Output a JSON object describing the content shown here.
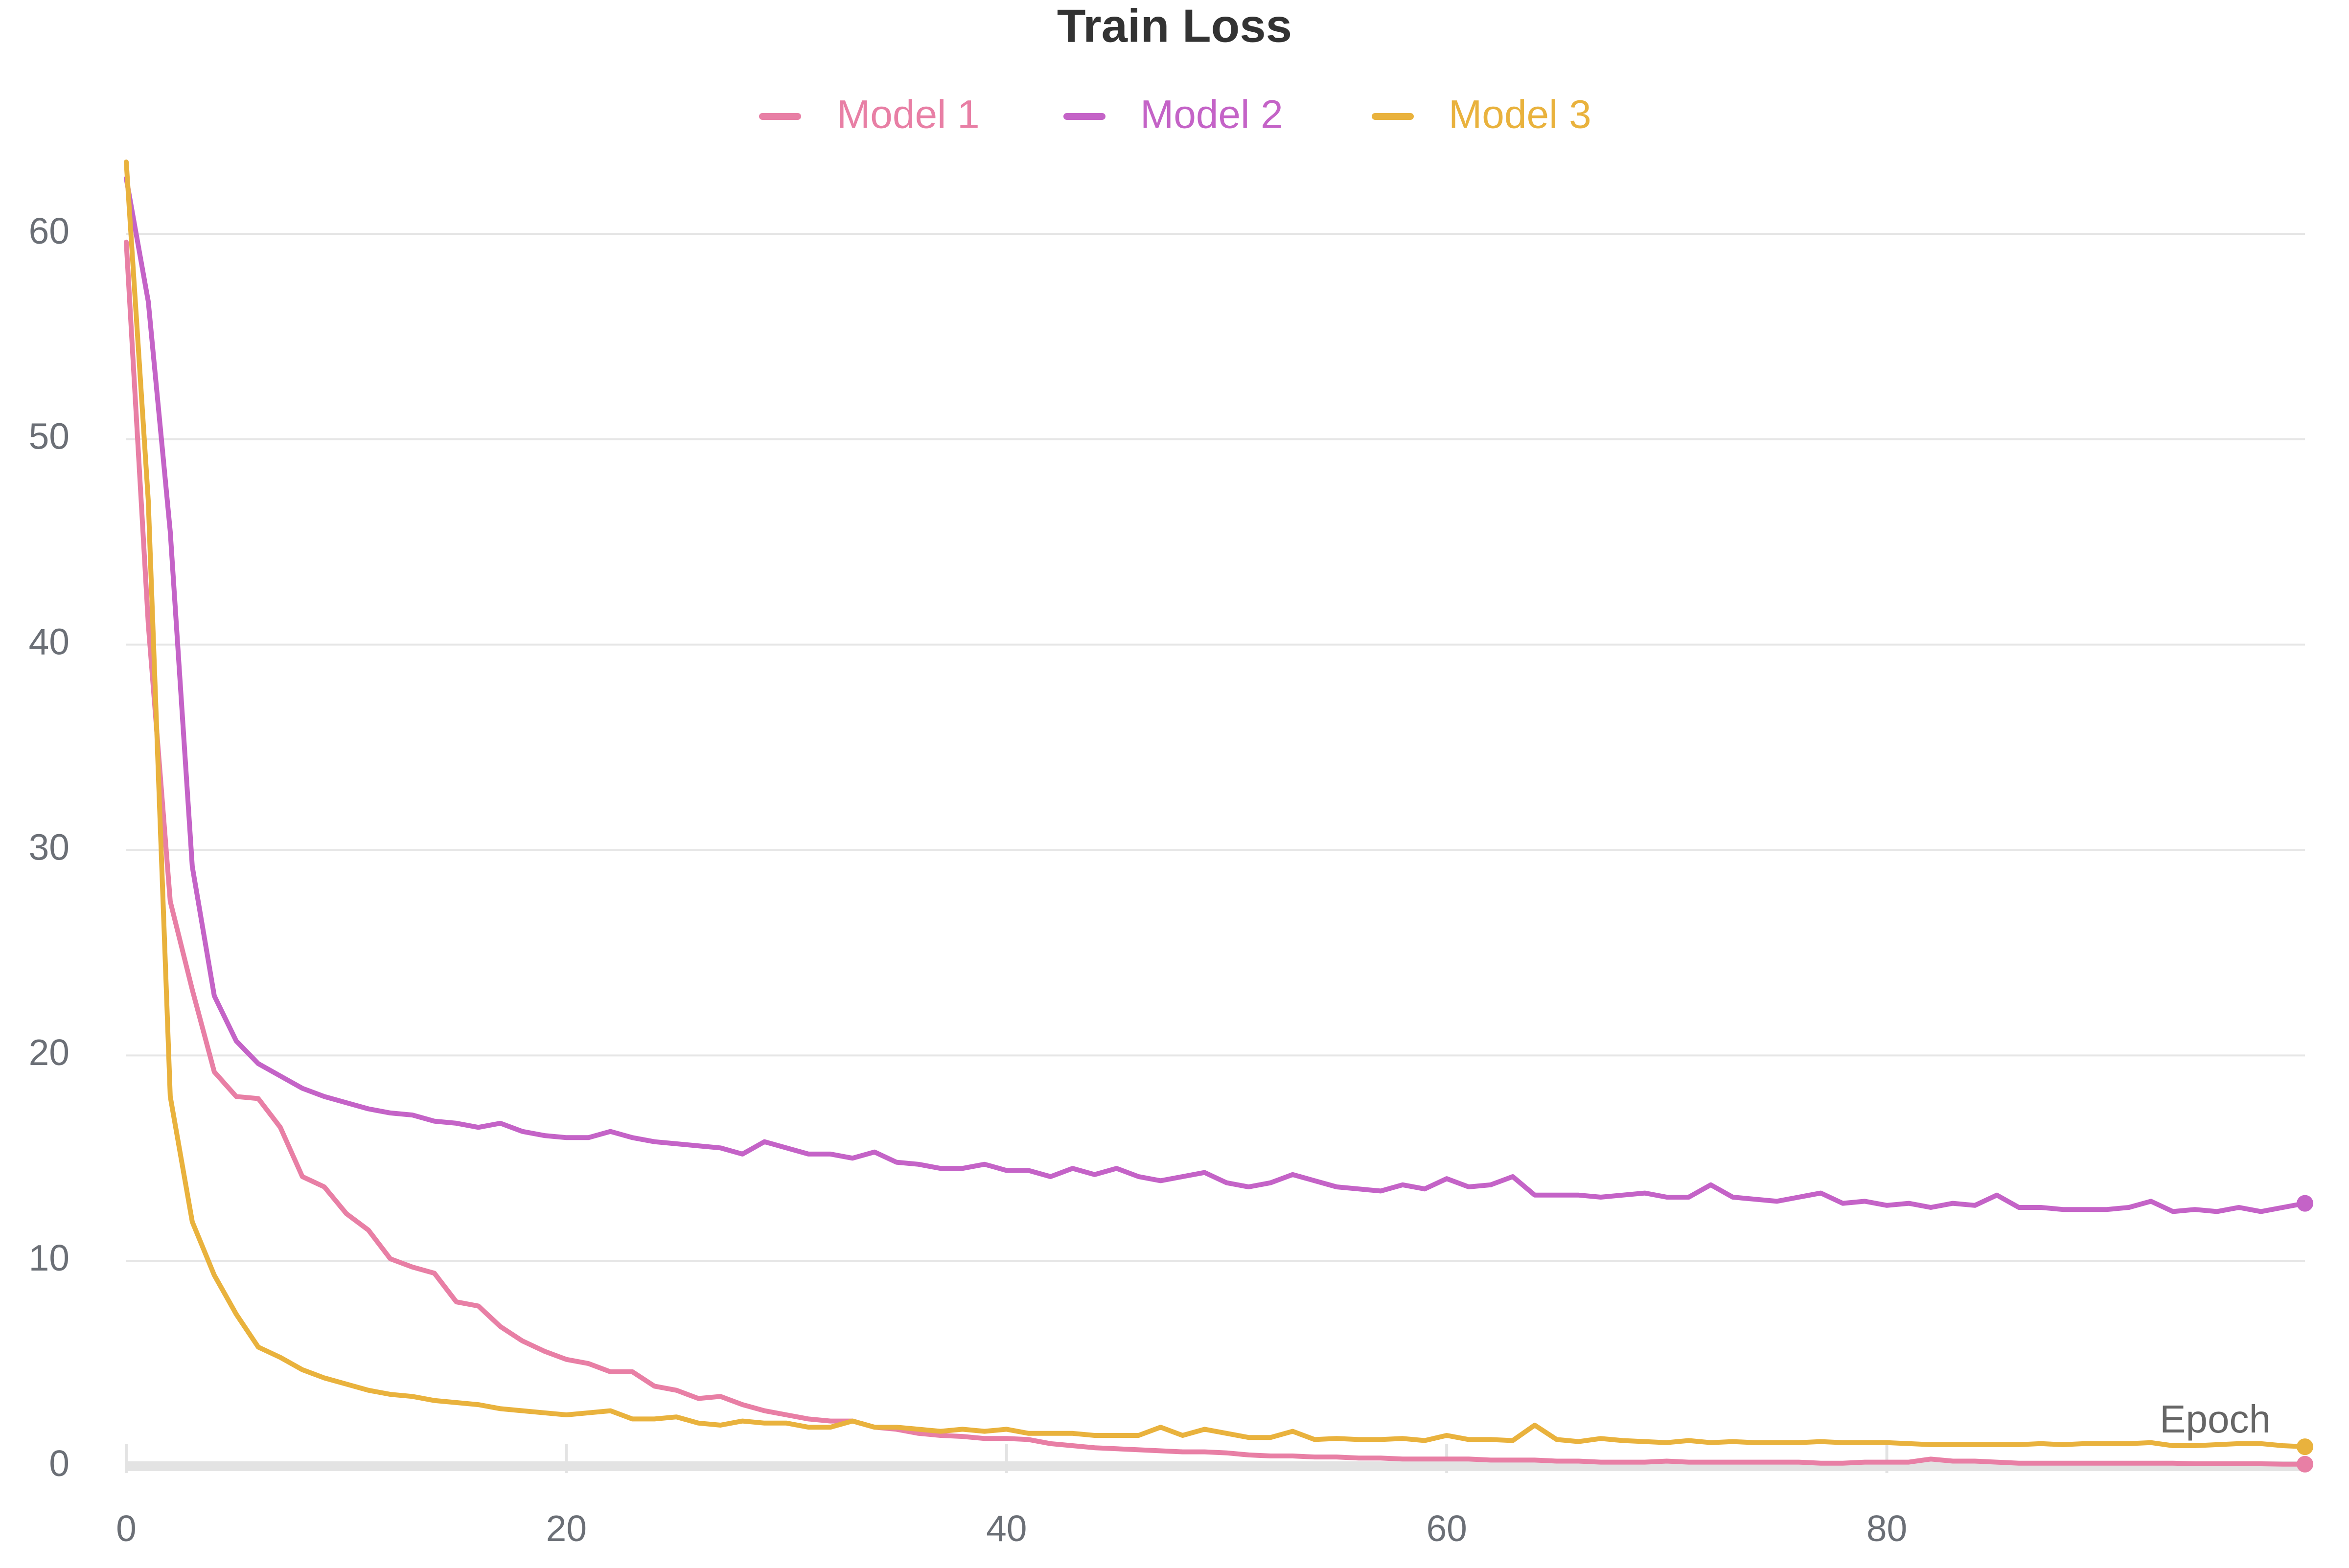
{
  "chart_data": {
    "type": "line",
    "title": "Train Loss",
    "xlabel": "Epoch",
    "ylabel": "",
    "xlim": [
      0,
      99
    ],
    "ylim": [
      0,
      60
    ],
    "x_ticks": [
      0,
      20,
      40,
      60,
      80
    ],
    "y_ticks": [
      0,
      10,
      20,
      30,
      40,
      50,
      60
    ],
    "grid": true,
    "legend_position": "top-center",
    "series": [
      {
        "name": "Model 1",
        "color": "#e87fa5",
        "values": [
          59.6,
          41.0,
          27.5,
          23.2,
          19.2,
          18.0,
          17.9,
          16.5,
          14.1,
          13.6,
          12.3,
          11.5,
          10.1,
          9.7,
          9.4,
          8.0,
          7.8,
          6.8,
          6.1,
          5.6,
          5.2,
          5.0,
          4.6,
          4.6,
          3.9,
          3.7,
          3.3,
          3.4,
          3.0,
          2.7,
          2.5,
          2.3,
          2.2,
          2.2,
          1.9,
          1.8,
          1.6,
          1.5,
          1.45,
          1.35,
          1.35,
          1.3,
          1.1,
          1.0,
          0.9,
          0.85,
          0.8,
          0.75,
          0.7,
          0.7,
          0.65,
          0.55,
          0.5,
          0.5,
          0.45,
          0.45,
          0.4,
          0.4,
          0.35,
          0.35,
          0.35,
          0.35,
          0.3,
          0.3,
          0.3,
          0.25,
          0.25,
          0.2,
          0.2,
          0.2,
          0.25,
          0.2,
          0.2,
          0.2,
          0.2,
          0.2,
          0.2,
          0.15,
          0.15,
          0.2,
          0.2,
          0.2,
          0.35,
          0.25,
          0.25,
          0.2,
          0.15,
          0.15,
          0.15,
          0.15,
          0.15,
          0.15,
          0.15,
          0.15,
          0.12,
          0.12,
          0.12,
          0.12,
          0.1,
          0.1
        ]
      },
      {
        "name": "Model 2",
        "color": "#c463c7",
        "values": [
          62.7,
          56.7,
          45.5,
          29.2,
          22.9,
          20.7,
          19.6,
          19.0,
          18.4,
          18.0,
          17.7,
          17.4,
          17.2,
          17.1,
          16.8,
          16.7,
          16.5,
          16.7,
          16.3,
          16.1,
          16.0,
          16.0,
          16.3,
          16.0,
          15.8,
          15.7,
          15.6,
          15.5,
          15.2,
          15.8,
          15.5,
          15.2,
          15.2,
          15.0,
          15.3,
          14.8,
          14.7,
          14.5,
          14.5,
          14.7,
          14.4,
          14.4,
          14.1,
          14.5,
          14.2,
          14.5,
          14.1,
          13.9,
          14.1,
          14.3,
          13.8,
          13.6,
          13.8,
          14.2,
          13.9,
          13.6,
          13.5,
          13.4,
          13.7,
          13.5,
          14.0,
          13.6,
          13.7,
          14.1,
          13.2,
          13.2,
          13.2,
          13.1,
          13.2,
          13.3,
          13.1,
          13.1,
          13.7,
          13.1,
          13.0,
          12.9,
          13.1,
          13.3,
          12.8,
          12.9,
          12.7,
          12.8,
          12.6,
          12.8,
          12.7,
          13.2,
          12.6,
          12.6,
          12.5,
          12.5,
          12.5,
          12.6,
          12.9,
          12.4,
          12.5,
          12.4,
          12.6,
          12.4,
          12.6,
          12.8
        ]
      },
      {
        "name": "Model 3",
        "color": "#e9b23d",
        "values": [
          63.5,
          47.0,
          18.0,
          11.9,
          9.3,
          7.4,
          5.8,
          5.3,
          4.7,
          4.3,
          4.0,
          3.7,
          3.5,
          3.4,
          3.2,
          3.1,
          3.0,
          2.8,
          2.7,
          2.6,
          2.5,
          2.6,
          2.7,
          2.3,
          2.3,
          2.4,
          2.1,
          2.0,
          2.2,
          2.1,
          2.1,
          1.9,
          1.9,
          2.2,
          1.9,
          1.9,
          1.8,
          1.7,
          1.8,
          1.7,
          1.8,
          1.6,
          1.6,
          1.6,
          1.5,
          1.5,
          1.5,
          1.9,
          1.5,
          1.8,
          1.6,
          1.4,
          1.4,
          1.7,
          1.3,
          1.35,
          1.3,
          1.3,
          1.35,
          1.25,
          1.5,
          1.3,
          1.3,
          1.25,
          2.0,
          1.3,
          1.2,
          1.35,
          1.25,
          1.2,
          1.15,
          1.25,
          1.15,
          1.2,
          1.15,
          1.15,
          1.15,
          1.2,
          1.15,
          1.15,
          1.15,
          1.1,
          1.05,
          1.05,
          1.05,
          1.05,
          1.05,
          1.1,
          1.05,
          1.1,
          1.1,
          1.1,
          1.15,
          1.0,
          1.0,
          1.05,
          1.1,
          1.1,
          1.0,
          0.95
        ]
      }
    ]
  }
}
